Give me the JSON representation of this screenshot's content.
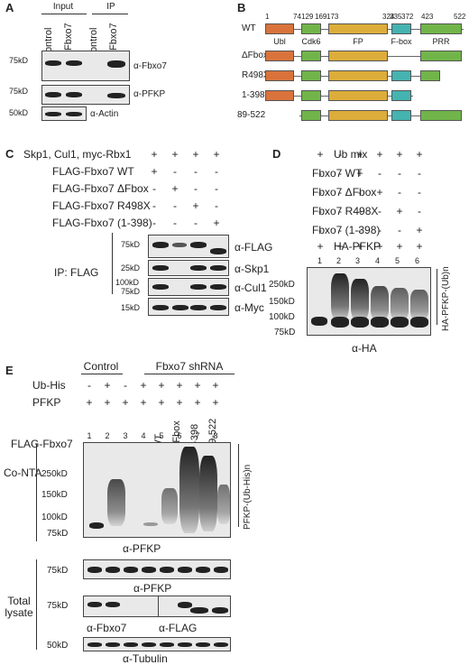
{
  "colors": {
    "ubl": "#d9733b",
    "cdk6": "#71b54a",
    "fp": "#dcad3a",
    "fbox": "#45b3b0",
    "prr": "#71b54a"
  },
  "panelA": {
    "letter": "A",
    "input": "Input",
    "ip": "IP",
    "lanes": [
      "Control",
      "α-Fbxo7",
      "Control",
      "α-Fbxo7"
    ],
    "rows": [
      {
        "mw": "75kD",
        "label": "α-Fbxo7"
      },
      {
        "mw": "75kD",
        "label": "α-PFKP"
      },
      {
        "mw": "50kD",
        "label": "α-Actin"
      }
    ]
  },
  "panelB": {
    "letter": "B",
    "positions": [
      "1",
      "74",
      "129",
      "169",
      "173",
      "324",
      "335",
      "372",
      "423",
      "522"
    ],
    "domains": [
      "Ubl",
      "Cdk6",
      "FP",
      "F-box",
      "PRR"
    ],
    "constructs": [
      "WT",
      "ΔFbox",
      "R498X",
      "1-398",
      "89-522"
    ]
  },
  "panelC": {
    "letter": "C",
    "conditions": [
      {
        "label": "Skp1, Cul1, myc-Rbx1",
        "signs": [
          "+",
          "+",
          "+",
          "+"
        ]
      },
      {
        "label": "FLAG-Fbxo7 WT",
        "signs": [
          "+",
          "-",
          "-",
          "-"
        ]
      },
      {
        "label": "FLAG-Fbxo7 ΔFbox",
        "signs": [
          "-",
          "+",
          "-",
          "-"
        ]
      },
      {
        "label": "FLAG-Fbxo7 R498X",
        "signs": [
          "-",
          "-",
          "+",
          "-"
        ]
      },
      {
        "label": "FLAG-Fbxo7 (1-398)",
        "signs": [
          "-",
          "-",
          "-",
          "+"
        ]
      }
    ],
    "ip_label": "IP: FLAG",
    "rows": [
      {
        "mw": "75kD",
        "label": "α-FLAG"
      },
      {
        "mw": "25kD",
        "label": "α-Skp1"
      },
      {
        "mw": "100kD",
        "mw2": "75kD",
        "label": "α-Cul1"
      },
      {
        "mw": "15kD",
        "label": "α-Myc"
      }
    ]
  },
  "panelD": {
    "letter": "D",
    "conditions": [
      {
        "label": "Ub mix",
        "signs": [
          "+",
          "-",
          "+",
          "+",
          "+",
          "+"
        ]
      },
      {
        "label": "Fbxo7 WT",
        "signs": [
          "-",
          "-",
          "+",
          "-",
          "-",
          "-"
        ]
      },
      {
        "label": "Fbxo7 ΔFbox",
        "signs": [
          "-",
          "-",
          "-",
          "+",
          "-",
          "-"
        ]
      },
      {
        "label": "Fbxo7 R498X",
        "signs": [
          "-",
          "-",
          "-",
          "-",
          "+",
          "-"
        ]
      },
      {
        "label": "Fbxo7 (1-398)",
        "signs": [
          "-",
          "-",
          "-",
          "-",
          "-",
          "+"
        ]
      },
      {
        "label": "HA-PFKP",
        "signs": [
          "+",
          "+",
          "+",
          "+",
          "+",
          "+"
        ]
      }
    ],
    "lanes": [
      "1",
      "2",
      "3",
      "4",
      "5",
      "6"
    ],
    "mw": [
      "250kD",
      "150kD",
      "100kD",
      "75kD"
    ],
    "side_label": "HA-PFKP-(Ub)n",
    "antibody": "α-HA"
  },
  "panelE": {
    "letter": "E",
    "control": "Control",
    "shrna": "Fbxo7 shRNA",
    "ubhis_label": "Ub-His",
    "ubhis": [
      "-",
      "+",
      "-",
      "+",
      "+",
      "+",
      "+",
      "+"
    ],
    "pfkp_label": "PFKP",
    "pfkp": [
      "+",
      "+",
      "+",
      "+",
      "+",
      "+",
      "+",
      "+"
    ],
    "flag_label": "FLAG-Fbxo7",
    "flag": [
      "-",
      "-",
      "-",
      "-",
      "WT",
      "ΔFbox",
      "1-398",
      "89-522"
    ],
    "lanes": [
      "1",
      "2",
      "3",
      "4",
      "5",
      "6",
      "7",
      "8"
    ],
    "conta": "Co-NTA",
    "mw_main": [
      "250kD",
      "150kD",
      "100kD",
      "75kD"
    ],
    "side_label": "PFKP-(Ub-His)n",
    "ab_main": "α-PFKP",
    "total": "Total lysate",
    "mw_pfkp": "75kD",
    "ab_pfkp": "α-PFKP",
    "mw_fbxo7": "75kD",
    "ab_fbxo7": "α-Fbxo7",
    "ab_flag": "α-FLAG",
    "mw_tub": "50kD",
    "ab_tub": "α-Tubulin"
  }
}
